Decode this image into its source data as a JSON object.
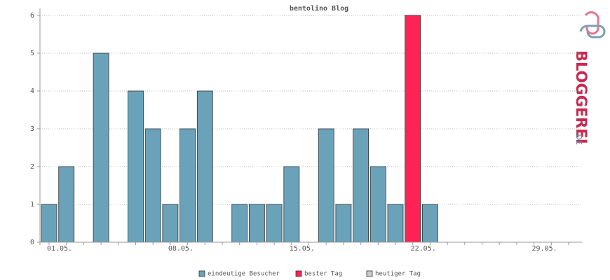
{
  "chart_data": {
    "type": "bar",
    "title": "bentolino Blog",
    "categories": [
      "01.05.",
      null,
      null,
      null,
      null,
      null,
      null,
      "08.05.",
      null,
      null,
      null,
      null,
      null,
      null,
      "15.05.",
      null,
      null,
      null,
      null,
      null,
      null,
      "22.05.",
      null,
      null,
      null,
      null,
      null,
      null,
      "29.05.",
      null,
      null
    ],
    "series": [
      {
        "name": "eindeutige Besucher",
        "color": "#6aa2b9",
        "values": [
          1,
          2,
          0,
          5,
          0,
          4,
          3,
          1,
          3,
          4,
          0,
          1,
          1,
          1,
          2,
          0,
          3,
          1,
          3,
          2,
          1,
          null,
          1,
          0,
          0,
          0,
          0,
          0,
          0,
          0,
          0
        ]
      },
      {
        "name": "bester Tag",
        "color": "#ff2255",
        "values": [
          null,
          null,
          null,
          null,
          null,
          null,
          null,
          null,
          null,
          null,
          null,
          null,
          null,
          null,
          null,
          null,
          null,
          null,
          null,
          null,
          null,
          6,
          null,
          null,
          null,
          null,
          null,
          null,
          null,
          null,
          null
        ]
      },
      {
        "name": "heutiger Tag",
        "color": "#cccccc",
        "values": [
          null,
          null,
          null,
          null,
          null,
          null,
          null,
          null,
          null,
          null,
          null,
          null,
          null,
          null,
          null,
          null,
          null,
          null,
          null,
          null,
          null,
          null,
          null,
          null,
          null,
          null,
          null,
          null,
          null,
          null,
          null
        ]
      }
    ],
    "ylim": [
      0,
      6
    ],
    "yticks": [
      0,
      1,
      2,
      3,
      4,
      5,
      6
    ],
    "grid": true
  },
  "logo": {
    "name": "BLOGGEREI",
    "suffix": ".DE"
  }
}
